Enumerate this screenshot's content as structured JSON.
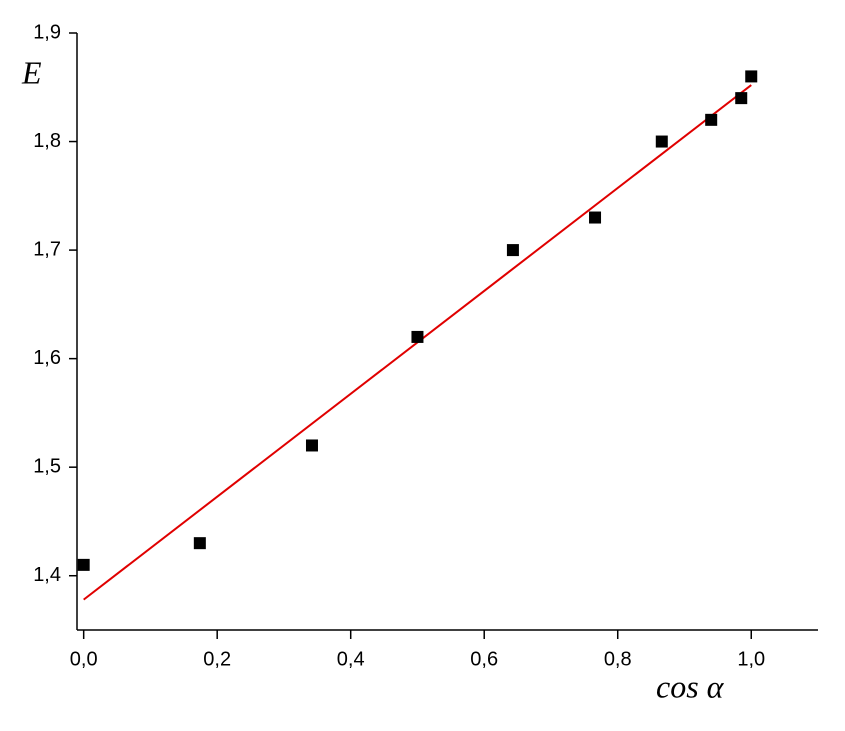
{
  "chart_data": {
    "type": "scatter",
    "x_label": "cos α",
    "y_label": "E",
    "xlim": [
      -0.01,
      1.1
    ],
    "ylim": [
      1.35,
      1.9
    ],
    "xticks": [
      {
        "value": 0,
        "label": "0,0"
      },
      {
        "value": 0.2,
        "label": "0,2"
      },
      {
        "value": 0.4,
        "label": "0,4"
      },
      {
        "value": 0.6,
        "label": "0,6"
      },
      {
        "value": 0.8,
        "label": "0,8"
      },
      {
        "value": 1.0,
        "label": "1,0"
      }
    ],
    "yticks": [
      {
        "value": 1.4,
        "label": "1,4"
      },
      {
        "value": 1.5,
        "label": "1,5"
      },
      {
        "value": 1.6,
        "label": "1,6"
      },
      {
        "value": 1.7,
        "label": "1,7"
      },
      {
        "value": 1.8,
        "label": "1,8"
      },
      {
        "value": 1.9,
        "label": "1,9"
      }
    ],
    "series": [
      {
        "color": "#000000",
        "x": [
          0,
          0.174,
          0.342,
          0.5,
          0.643,
          0.766,
          0.866,
          0.94,
          0.985,
          1.0
        ],
        "values": [
          1.41,
          1.43,
          1.52,
          1.62,
          1.7,
          1.73,
          1.8,
          1.82,
          1.84,
          1.86
        ]
      }
    ],
    "fit": {
      "color": "#e00000",
      "x": [
        0,
        1.0
      ],
      "values": [
        1.378,
        1.852
      ]
    }
  }
}
